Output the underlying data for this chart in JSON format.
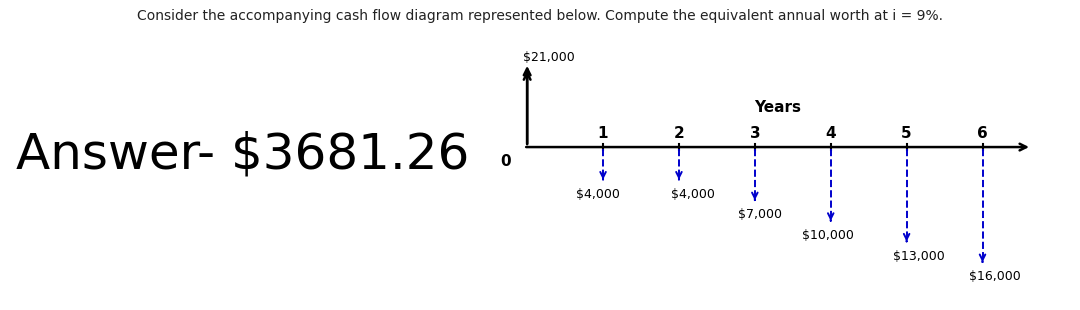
{
  "title_text": "Consider the accompanying cash flow diagram represented below. Compute the equivalent annual worth at i = 9%.",
  "answer_text": "Answer- $3681.26",
  "years_label": "Years",
  "zero_label": "0",
  "year_ticks": [
    1,
    2,
    3,
    4,
    5,
    6
  ],
  "up_arrow_label": "$21,000",
  "down_arrows": [
    {
      "year": 1,
      "amount": "$4,000",
      "depth": -1.2
    },
    {
      "year": 2,
      "amount": "$4,000",
      "depth": -1.2
    },
    {
      "year": 3,
      "amount": "$7,000",
      "depth": -1.9
    },
    {
      "year": 4,
      "amount": "$10,000",
      "depth": -2.6
    },
    {
      "year": 5,
      "amount": "$13,000",
      "depth": -3.3
    },
    {
      "year": 6,
      "amount": "$16,000",
      "depth": -4.0
    }
  ],
  "arrow_color": "#0000CC",
  "axis_color": "#000000",
  "background_color": "#ffffff",
  "title_fontsize": 10.0,
  "answer_fontsize": 36,
  "years_fontsize": 11,
  "tick_fontsize": 11,
  "label_fontsize": 9.0,
  "up_label_fontsize": 9.0
}
